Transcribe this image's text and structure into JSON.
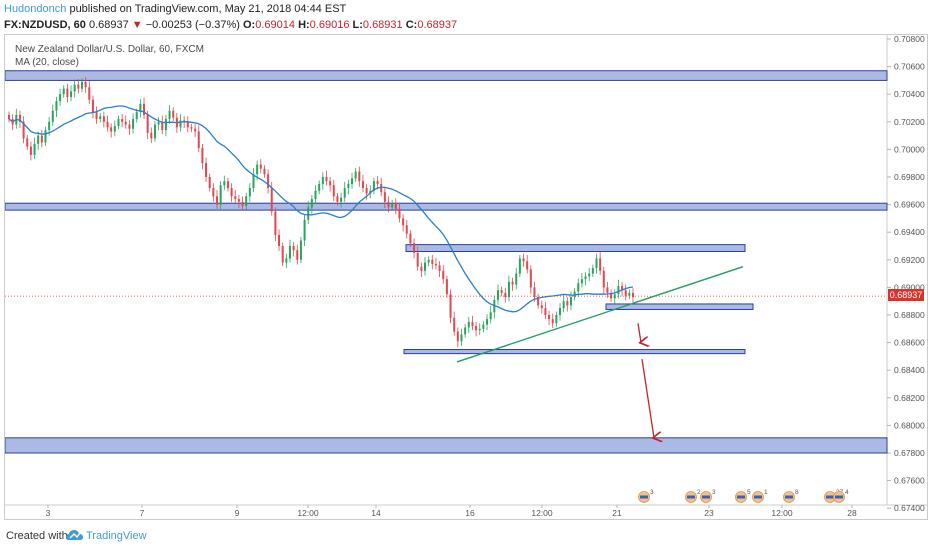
{
  "header": {
    "author": "Hudondonch",
    "published": " published on TradingView.com, May 21, 2018 04:44 EST",
    "symbol": "FX:NZDUSD, 60",
    "last": "0.68937",
    "change_arrow": "▼",
    "change": "−0.00253 (−0.37%)",
    "o_label": "O:",
    "o_val": "0.69014",
    "h_label": "H:",
    "h_val": "0.69016",
    "l_label": "L:",
    "l_val": "0.68931",
    "c_label": "C:",
    "c_val": "0.68937"
  },
  "legend": {
    "title": "New Zealand Dollar/U.S. Dollar, 60, FXCM",
    "ma": "MA (20, close)"
  },
  "footer": {
    "created_with": "Created with",
    "brand": "TradingView",
    "logo_icon": "tradingview-cloud-icon"
  },
  "colors": {
    "up": "#26a65b",
    "down": "#e0474f",
    "ma": "#2a7fc9",
    "zone_fill": "#8ea3dc",
    "zone_stroke": "#2c3e9a",
    "trendline": "#1f9e5f",
    "arrow": "#c0262d",
    "last_price": "#d9342b"
  },
  "chart_data": {
    "type": "candlestick",
    "y_axis_ticks": [
      "0.70800",
      "0.70600",
      "0.70400",
      "0.70200",
      "0.70000",
      "0.69800",
      "0.69600",
      "0.69400",
      "0.69200",
      "0.69000",
      "0.68800",
      "0.68600",
      "0.68400",
      "0.68200",
      "0.68000",
      "0.67800",
      "0.67600",
      "0.67400"
    ],
    "ylim": [
      0.6733,
      0.7088
    ],
    "x_axis_ticks": [
      "3",
      "7",
      "9",
      "12:00",
      "14",
      "16",
      "12:00",
      "21",
      "23",
      "12:00",
      "28"
    ],
    "last_price_label": "0.68937",
    "price_path": [
      0.7022,
      0.7018,
      0.7025,
      0.702,
      0.7008,
      0.7002,
      0.6996,
      0.7004,
      0.701,
      0.7005,
      0.7014,
      0.702,
      0.7028,
      0.7035,
      0.704,
      0.7044,
      0.7038,
      0.7042,
      0.7047,
      0.7044,
      0.7049,
      0.7045,
      0.7036,
      0.7027,
      0.7022,
      0.7024,
      0.702,
      0.7016,
      0.7013,
      0.7017,
      0.7022,
      0.702,
      0.7018,
      0.7015,
      0.7022,
      0.7027,
      0.7033,
      0.7025,
      0.7012,
      0.7008,
      0.7018,
      0.702,
      0.7014,
      0.7022,
      0.7028,
      0.7023,
      0.7016,
      0.7021,
      0.702,
      0.7016,
      0.7015,
      0.7013,
      0.7001,
      0.699,
      0.698,
      0.6972,
      0.6966,
      0.696,
      0.6974,
      0.6977,
      0.6972,
      0.6966,
      0.6964,
      0.6962,
      0.6959,
      0.6966,
      0.6972,
      0.6982,
      0.6989,
      0.6986,
      0.6982,
      0.6972,
      0.6955,
      0.6938,
      0.693,
      0.6918,
      0.6921,
      0.693,
      0.6927,
      0.692,
      0.6934,
      0.6949,
      0.6958,
      0.6964,
      0.697,
      0.6975,
      0.698,
      0.6977,
      0.6974,
      0.6966,
      0.6962,
      0.6965,
      0.6972,
      0.6975,
      0.6979,
      0.6984,
      0.6977,
      0.6972,
      0.6968,
      0.697,
      0.6977,
      0.6975,
      0.6969,
      0.6962,
      0.6958,
      0.6961,
      0.6957,
      0.695,
      0.6945,
      0.6939,
      0.6932,
      0.6925,
      0.6915,
      0.6912,
      0.6918,
      0.692,
      0.6917,
      0.6916,
      0.6912,
      0.6906,
      0.6895,
      0.6878,
      0.6868,
      0.6861,
      0.6866,
      0.6871,
      0.6875,
      0.6872,
      0.6869,
      0.687,
      0.6873,
      0.6877,
      0.6882,
      0.6891,
      0.6898,
      0.6896,
      0.6893,
      0.6904,
      0.6902,
      0.691,
      0.6921,
      0.6919,
      0.6913,
      0.69,
      0.6893,
      0.6887,
      0.6885,
      0.688,
      0.6877,
      0.6874,
      0.688,
      0.6885,
      0.689,
      0.6887,
      0.6893,
      0.6897,
      0.6903,
      0.6906,
      0.6908,
      0.691,
      0.6914,
      0.6921,
      0.6912,
      0.69,
      0.6896,
      0.6892,
      0.6895,
      0.6901,
      0.6898,
      0.6894,
      0.6896,
      0.6893
    ],
    "ma_period": 20,
    "annotations": [
      {
        "kind": "zone",
        "from": 0.7057,
        "to": 0.705,
        "start": "left",
        "end": "right"
      },
      {
        "kind": "zone",
        "from": 0.6961,
        "to": 0.6956,
        "start": "left",
        "end": "right"
      },
      {
        "kind": "zone",
        "from": 0.6931,
        "to": 0.6926,
        "start": "14",
        "end": "23"
      },
      {
        "kind": "zone",
        "from": 0.6888,
        "to": 0.6884,
        "start": "21",
        "end": "23"
      },
      {
        "kind": "zone",
        "from": 0.6855,
        "to": 0.6852,
        "start": "14",
        "end": "23"
      },
      {
        "kind": "zone",
        "from": 0.6791,
        "to": 0.678,
        "start": "left",
        "end": "right"
      },
      {
        "kind": "trendline",
        "from": [
          0.6846
        ],
        "to": [
          0.6915
        ]
      },
      {
        "kind": "arrow",
        "from": 0.6874,
        "to": 0.686
      },
      {
        "kind": "arrow",
        "from": 0.6848,
        "to": 0.6791
      }
    ],
    "event_markers": [
      "3",
      "2",
      "3",
      "5",
      "1",
      "8",
      "27",
      "4"
    ]
  }
}
